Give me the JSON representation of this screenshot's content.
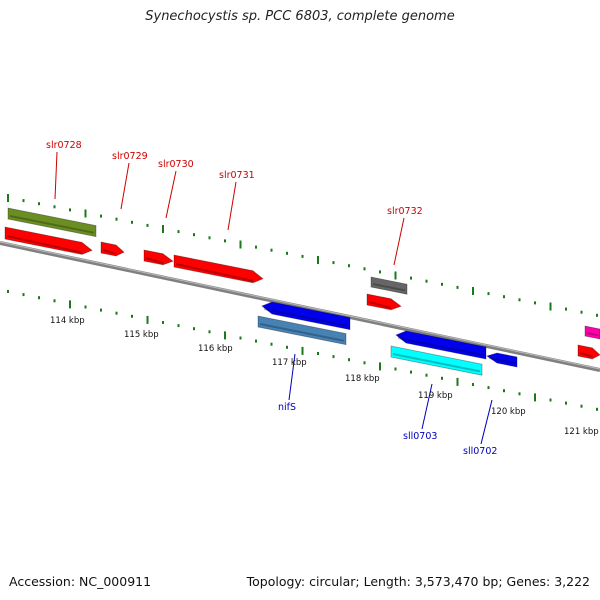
{
  "title": "Synechocystis sp. PCC 6803, complete genome",
  "accession": "Accession: NC_000911",
  "summary": "Topology: circular; Length: 3,573,470 bp; Genes: 3,222",
  "colors": {
    "backbone": "#808080",
    "tick": "#1a7a1a",
    "label_forward": "#cc0000",
    "label_reverse": "#0000bb",
    "olive": "#6b8e23",
    "red": "#ff0000",
    "gray": "#666666",
    "blue": "#0000ee",
    "steelblue": "#4682b4",
    "cyan": "#00ffff",
    "magenta": "#ff00aa"
  },
  "kbp_labels": [
    "114 kbp",
    "115 kbp",
    "116 kbp",
    "117 kbp",
    "118 kbp",
    "119 kbp",
    "120 kbp",
    "121 kbp"
  ],
  "gene_labels": [
    {
      "text": "slr0728",
      "strand": "forward"
    },
    {
      "text": "slr0729",
      "strand": "forward"
    },
    {
      "text": "slr0730",
      "strand": "forward"
    },
    {
      "text": "slr0731",
      "strand": "forward"
    },
    {
      "text": "slr0732",
      "strand": "forward"
    },
    {
      "text": "nifS",
      "strand": "reverse"
    },
    {
      "text": "sll0703",
      "strand": "reverse"
    },
    {
      "text": "sll0702",
      "strand": "reverse"
    }
  ]
}
